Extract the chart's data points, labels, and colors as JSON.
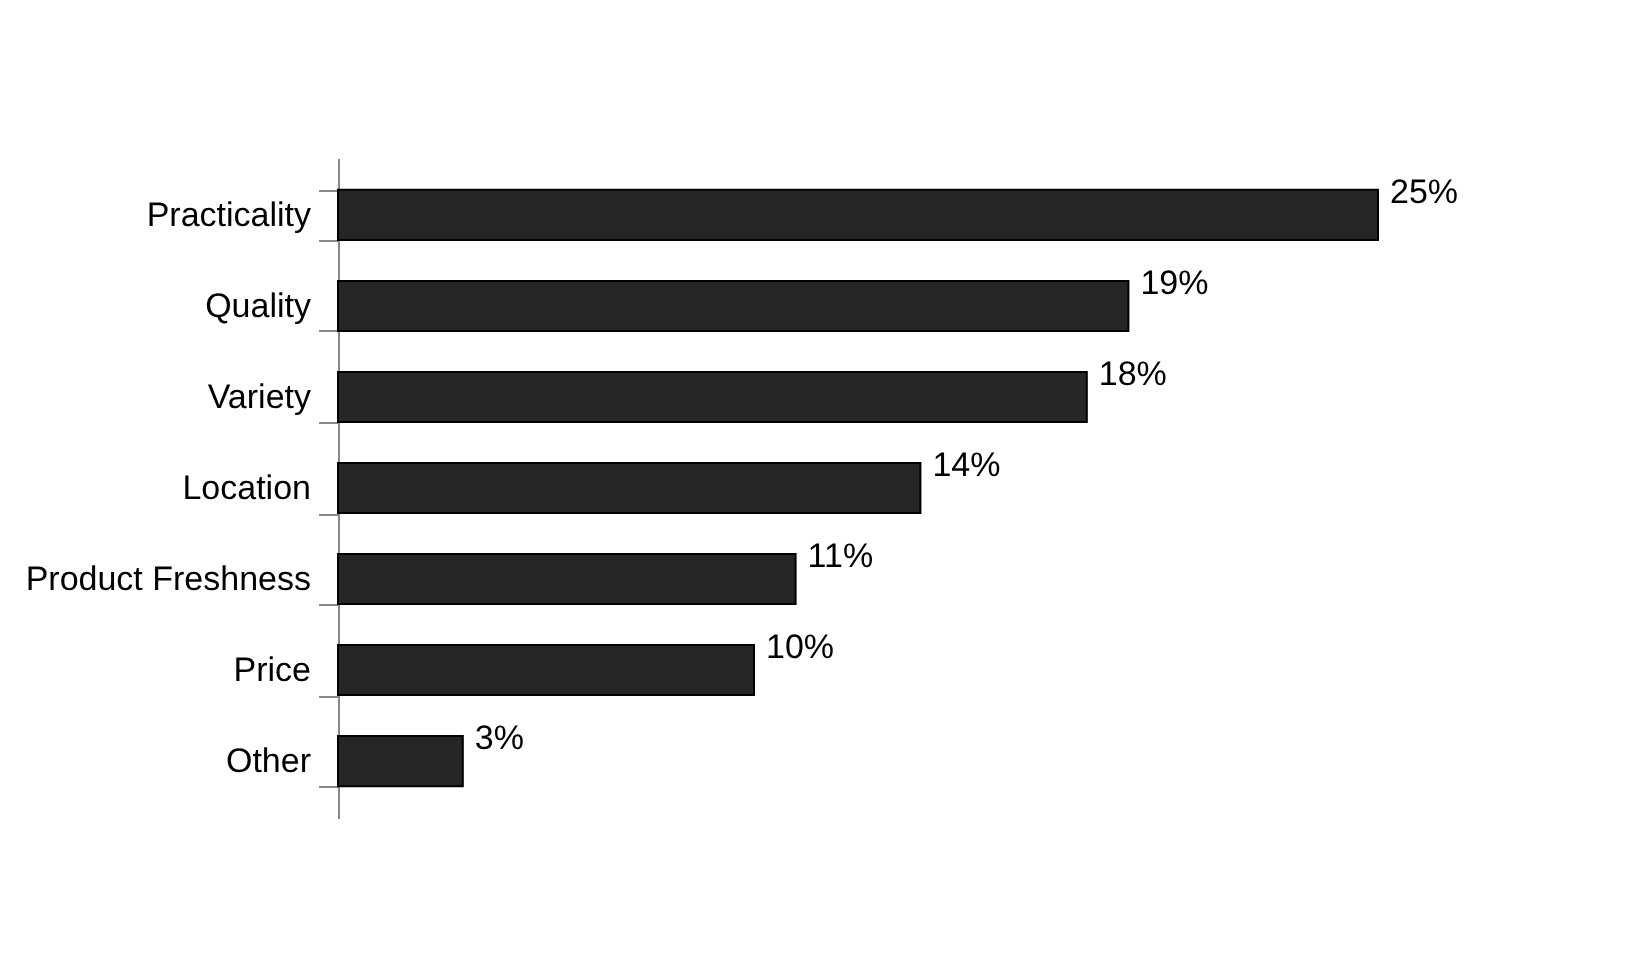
{
  "chart_data": {
    "type": "bar",
    "orientation": "horizontal",
    "categories": [
      "Practicality",
      "Quality",
      "Variety",
      "Location",
      "Product Freshness",
      "Price",
      "Other"
    ],
    "values": [
      25,
      19,
      18,
      14,
      11,
      10,
      3
    ],
    "value_labels": [
      "25%",
      "19%",
      "18%",
      "14%",
      "11%",
      "10%",
      "3%"
    ],
    "color": "#262626",
    "tick_labels": "y"
  }
}
